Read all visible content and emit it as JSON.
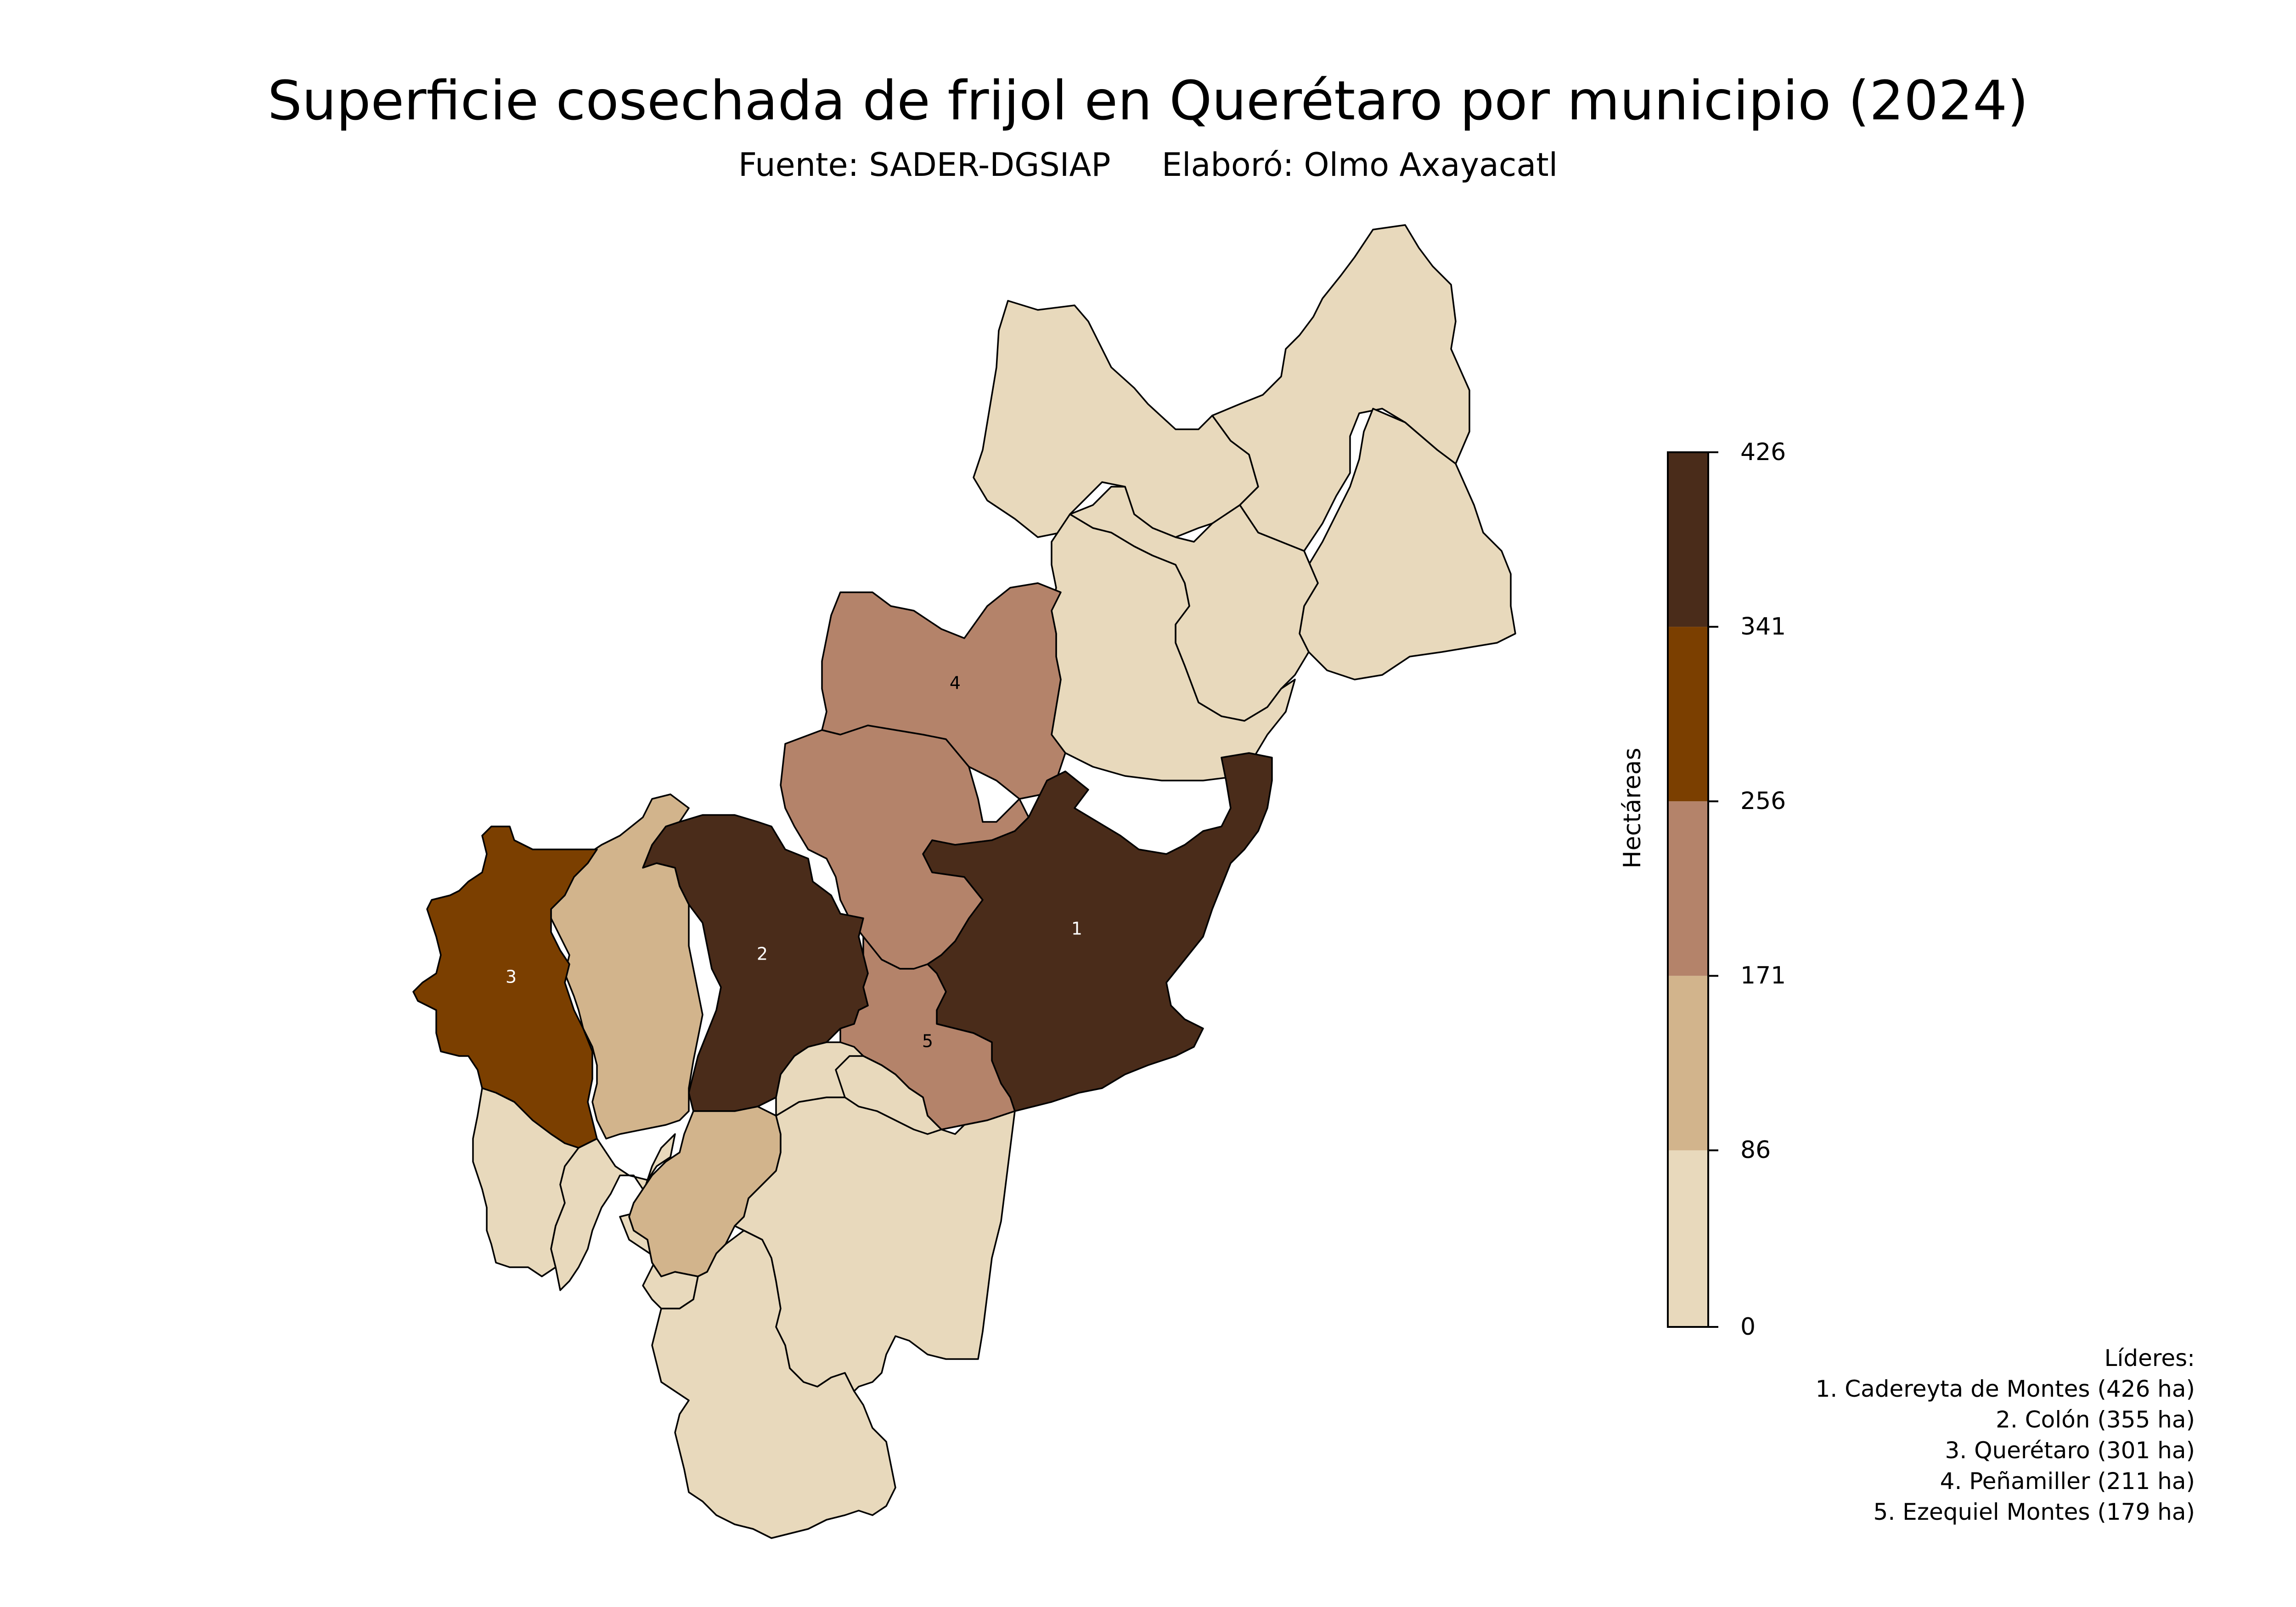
{
  "title": "Superficie cosechada de frijol en Querétaro por municipio (2024)",
  "subtitle": {
    "source": "Fuente: SADER-DGSIAP",
    "author": "Elaboró: Olmo Axayacatl"
  },
  "colors": {
    "class_1": "#e8d9bc",
    "class_2": "#d2b48c",
    "class_3": "#b4836a",
    "class_4": "#7b3f00",
    "class_5": "#4a2c1a"
  },
  "legend": {
    "title": "Hectáreas",
    "ticks": [
      "426",
      "341",
      "256",
      "171",
      "86",
      "0"
    ],
    "values": [
      426,
      341,
      256,
      171,
      86,
      0
    ],
    "min": 0,
    "max": 426,
    "classes": [
      {
        "from": 0,
        "to": 86,
        "color_key": "class_1"
      },
      {
        "from": 86,
        "to": 171,
        "color_key": "class_2"
      },
      {
        "from": 171,
        "to": 256,
        "color_key": "class_3"
      },
      {
        "from": 256,
        "to": 341,
        "color_key": "class_4"
      },
      {
        "from": 341,
        "to": 426,
        "color_key": "class_5"
      }
    ]
  },
  "region_labels": {
    "r1": "1",
    "r2": "2",
    "r3": "3",
    "r4": "4",
    "r5": "5"
  },
  "leaders": {
    "heading": "Líderes:",
    "items": [
      "1. Cadereyta de Montes (426 ha)",
      "2. Colón (355 ha)",
      "3. Querétaro (301 ha)",
      "4. Peñamiller (211 ha)",
      "5. Ezequiel Montes (179 ha)"
    ]
  }
}
